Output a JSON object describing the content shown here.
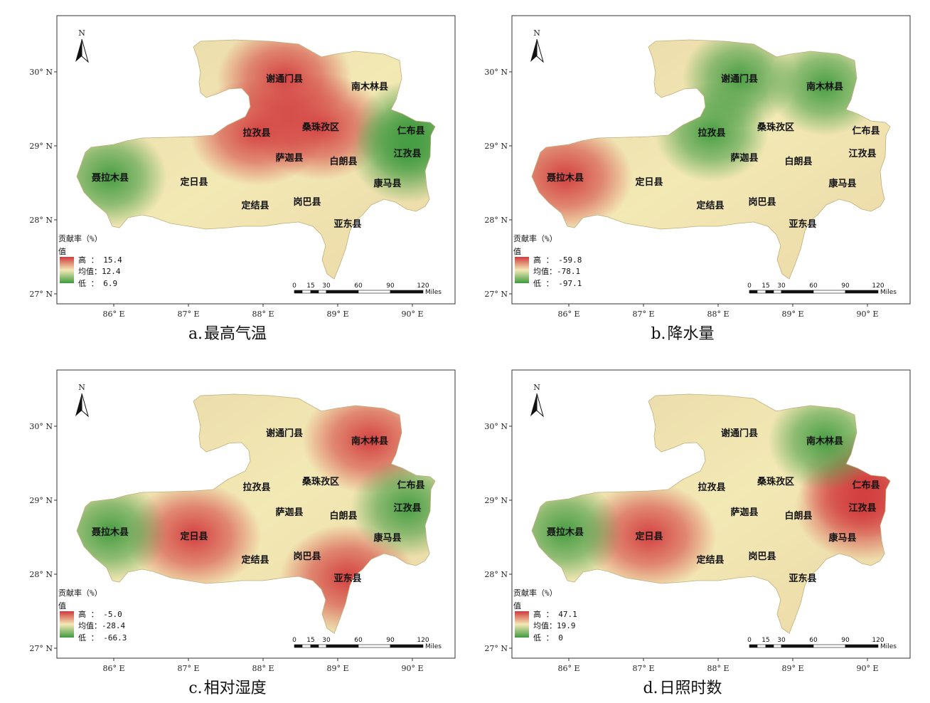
{
  "north_label": "N",
  "lat_ticks": [
    "30° N",
    "29° N",
    "28° N",
    "27° N"
  ],
  "lon_ticks": [
    "86° E",
    "87° E",
    "88° E",
    "89° E",
    "90° E"
  ],
  "scale_bar": {
    "ticks": [
      "0",
      "15",
      "30",
      "60",
      "90",
      "120"
    ],
    "unit": "Miles"
  },
  "legend": {
    "title": "贡献率（%）",
    "subtitle": "值",
    "high_prefix": "高 ：",
    "mean_prefix": "均值：",
    "low_prefix": "低 ："
  },
  "counties": [
    "谢通门县",
    "南木林县",
    "桑珠孜区",
    "拉孜县",
    "仁布县",
    "萨迦县",
    "江孜县",
    "白朗县",
    "聂拉木县",
    "定日县",
    "康马县",
    "定结县",
    "岗巴县",
    "亚东县"
  ],
  "colors": {
    "high": "#d2393b",
    "mid": "#f3e9b5",
    "low": "#3f9a3e",
    "frame": "#333333"
  },
  "panels": [
    {
      "id": "a",
      "prefix": "a.",
      "title": "最高气温",
      "high": "15.4",
      "mean": "12.4",
      "low": "6.9",
      "high_areas": [
        "拉孜县",
        "桑珠孜区",
        "谢通门县"
      ],
      "low_areas": [
        "仁布县",
        "江孜县",
        "聂拉木县"
      ]
    },
    {
      "id": "b",
      "prefix": "b.",
      "title": "降水量",
      "high": "-59.8",
      "mean": "-78.1",
      "low": "-97.1",
      "high_areas": [
        "聂拉木县"
      ],
      "low_areas": [
        "拉孜县",
        "南木林县",
        "谢通门县"
      ]
    },
    {
      "id": "c",
      "prefix": "c.",
      "title": "相对湿度",
      "high": "-5.0",
      "mean": "-28.4",
      "low": "-66.3",
      "high_areas": [
        "南木林县",
        "定日县",
        "亚东县"
      ],
      "low_areas": [
        "聂拉木县",
        "江孜县"
      ]
    },
    {
      "id": "d",
      "prefix": "d.",
      "title": "日照时数",
      "high": "47.1",
      "mean": "19.9",
      "low": "0",
      "high_areas": [
        "定日县",
        "江孜县",
        "仁布县"
      ],
      "low_areas": [
        "聂拉木县",
        "南木林县"
      ]
    }
  ]
}
